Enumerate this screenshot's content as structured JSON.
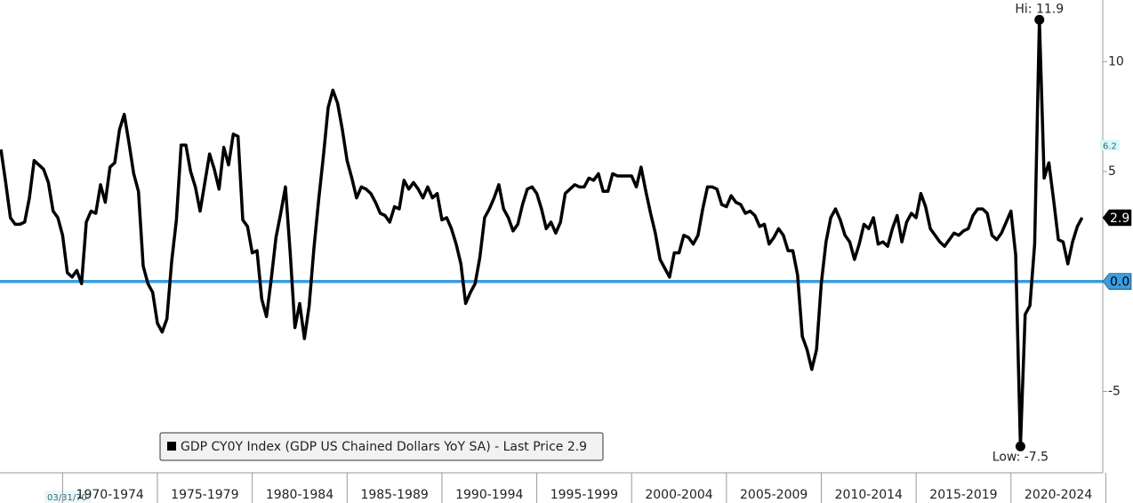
{
  "chart_data": {
    "type": "line",
    "legend_text": "GDP CY0Y Index (GDP US Chained Dollars YoY SA) - Last Price 2.9",
    "start_date_label": "03/31/70",
    "hi_label": "Hi: 11.9",
    "low_label": "Low: -7.5",
    "x": [
      1966.75,
      1967,
      1967.25,
      1967.5,
      1967.75,
      1968,
      1968.25,
      1968.5,
      1968.75,
      1969,
      1969.25,
      1969.5,
      1969.75,
      1970,
      1970.25,
      1970.5,
      1970.75,
      1971,
      1971.25,
      1971.5,
      1971.75,
      1972,
      1972.25,
      1972.5,
      1972.75,
      1973,
      1973.25,
      1973.5,
      1973.75,
      1974,
      1974.25,
      1974.5,
      1974.75,
      1975,
      1975.25,
      1975.5,
      1975.75,
      1976,
      1976.25,
      1976.5,
      1976.75,
      1977,
      1977.25,
      1977.5,
      1977.75,
      1978,
      1978.25,
      1978.5,
      1978.75,
      1979,
      1979.25,
      1979.5,
      1979.75,
      1980,
      1980.25,
      1980.5,
      1980.75,
      1981,
      1981.25,
      1981.5,
      1981.75,
      1982,
      1982.25,
      1982.5,
      1982.75,
      1983,
      1983.25,
      1983.5,
      1983.75,
      1984,
      1984.25,
      1984.5,
      1984.75,
      1985,
      1985.25,
      1985.5,
      1985.75,
      1986,
      1986.25,
      1986.5,
      1986.75,
      1987,
      1987.25,
      1987.5,
      1987.75,
      1988,
      1988.25,
      1988.5,
      1988.75,
      1989,
      1989.25,
      1989.5,
      1989.75,
      1990,
      1990.25,
      1990.5,
      1990.75,
      1991,
      1991.25,
      1991.5,
      1991.75,
      1992,
      1992.25,
      1992.5,
      1992.75,
      1993,
      1993.25,
      1993.5,
      1993.75,
      1994,
      1994.25,
      1994.5,
      1994.75,
      1995,
      1995.25,
      1995.5,
      1995.75,
      1996,
      1996.25,
      1996.5,
      1996.75,
      1997,
      1997.25,
      1997.5,
      1997.75,
      1998,
      1998.25,
      1998.5,
      1998.75,
      1999,
      1999.25,
      1999.5,
      1999.75,
      2000,
      2000.25,
      2000.5,
      2000.75,
      2001,
      2001.25,
      2001.5,
      2001.75,
      2002,
      2002.25,
      2002.5,
      2002.75,
      2003,
      2003.25,
      2003.5,
      2003.75,
      2004,
      2004.25,
      2004.5,
      2004.75,
      2005,
      2005.25,
      2005.5,
      2005.75,
      2006,
      2006.25,
      2006.5,
      2006.75,
      2007,
      2007.25,
      2007.5,
      2007.75,
      2008,
      2008.25,
      2008.5,
      2008.75,
      2009,
      2009.25,
      2009.5,
      2009.75,
      2010,
      2010.25,
      2010.5,
      2010.75,
      2011,
      2011.25,
      2011.5,
      2011.75,
      2012,
      2012.25,
      2012.5,
      2012.75,
      2013,
      2013.25,
      2013.5,
      2013.75,
      2014,
      2014.25,
      2014.5,
      2014.75,
      2015,
      2015.25,
      2015.5,
      2015.75,
      2016,
      2016.25,
      2016.5,
      2016.75,
      2017,
      2017.25,
      2017.5,
      2017.75,
      2018,
      2018.25,
      2018.5,
      2018.75,
      2019,
      2019.25,
      2019.5,
      2019.75,
      2020,
      2020.25,
      2020.5,
      2020.75,
      2021,
      2021.25,
      2021.5,
      2021.75,
      2022,
      2022.25,
      2022.5,
      2022.75,
      2023,
      2023.25,
      2023.5,
      2023.75
    ],
    "series": [
      {
        "name": "GDP CY0Y Index",
        "color": "#000000",
        "values": [
          6.0,
          4.5,
          2.9,
          2.6,
          2.6,
          2.7,
          3.8,
          5.5,
          5.3,
          5.1,
          4.5,
          3.2,
          2.9,
          2.1,
          0.4,
          0.2,
          0.5,
          -0.1,
          2.7,
          3.2,
          3.1,
          4.4,
          3.6,
          5.2,
          5.4,
          6.9,
          7.6,
          6.3,
          4.9,
          4.1,
          0.7,
          -0.1,
          -0.5,
          -1.9,
          -2.3,
          -1.7,
          0.9,
          2.8,
          6.2,
          6.2,
          5.0,
          4.3,
          3.2,
          4.5,
          5.8,
          5.1,
          4.2,
          6.1,
          5.3,
          6.7,
          6.6,
          2.8,
          2.5,
          1.3,
          1.4,
          -0.8,
          -1.6,
          0.1,
          2.0,
          3.1,
          4.3,
          1.3,
          -2.1,
          -1.0,
          -2.6,
          -1.1,
          1.5,
          3.7,
          5.7,
          7.9,
          8.7,
          8.1,
          6.9,
          5.5,
          4.7,
          3.8,
          4.3,
          4.2,
          4.0,
          3.6,
          3.1,
          3.0,
          2.7,
          3.4,
          3.3,
          4.6,
          4.2,
          4.5,
          4.2,
          3.8,
          4.3,
          3.8,
          4.0,
          2.8,
          2.9,
          2.4,
          1.7,
          0.8,
          -1.0,
          -0.5,
          -0.1,
          1.1,
          2.9,
          3.3,
          3.8,
          4.4,
          3.3,
          2.9,
          2.3,
          2.6,
          3.5,
          4.2,
          4.3,
          4.0,
          3.3,
          2.4,
          2.7,
          2.2,
          2.7,
          4.0,
          4.2,
          4.4,
          4.3,
          4.3,
          4.7,
          4.6,
          4.9,
          4.1,
          4.1,
          4.9,
          4.8,
          4.8,
          4.8,
          4.8,
          4.3,
          5.2,
          4.1,
          3.1,
          2.2,
          1.0,
          0.6,
          0.2,
          1.3,
          1.3,
          2.1,
          2.0,
          1.7,
          2.1,
          3.3,
          4.3,
          4.3,
          4.2,
          3.5,
          3.4,
          3.9,
          3.6,
          3.5,
          3.1,
          3.2,
          3.0,
          2.5,
          2.6,
          1.7,
          2.0,
          2.4,
          2.1,
          1.4,
          1.4,
          0.3,
          -2.5,
          -3.1,
          -4.0,
          -3.1,
          -0.1,
          1.8,
          2.9,
          3.3,
          2.8,
          2.1,
          1.8,
          1.0,
          1.7,
          2.6,
          2.4,
          2.9,
          1.7,
          1.8,
          1.6,
          2.4,
          3.0,
          1.8,
          2.7,
          3.1,
          2.9,
          4.0,
          3.4,
          2.4,
          2.1,
          1.8,
          1.6,
          1.9,
          2.2,
          2.1,
          2.3,
          2.4,
          3.0,
          3.3,
          3.3,
          3.1,
          2.1,
          1.9,
          2.2,
          2.7,
          3.2,
          1.2,
          -7.5,
          -1.5,
          -1.1,
          1.7,
          11.9,
          4.7,
          5.4,
          3.7,
          1.9,
          1.8,
          0.8,
          1.8,
          2.5,
          2.9
        ]
      }
    ],
    "xlim": [
      1966.7,
      2024.7
    ],
    "xticks": [
      1970,
      1975,
      1980,
      1985,
      1990,
      1995,
      2000,
      2005,
      2010,
      2015,
      2020,
      2025
    ],
    "period_labels": [
      "1970-1974",
      "1975-1979",
      "1980-1984",
      "1985-1989",
      "1990-1994",
      "1995-1999",
      "2000-2004",
      "2005-2009",
      "2010-2014",
      "2015-2019",
      "2020-2024"
    ],
    "ylim": [
      -8.7,
      12.8
    ],
    "yticks": [
      -5,
      5,
      10
    ],
    "zero_line": {
      "value": 0,
      "label": "0.0",
      "color": "#3a9de0"
    },
    "last_price": 2.9,
    "reference_value": 6.2
  }
}
